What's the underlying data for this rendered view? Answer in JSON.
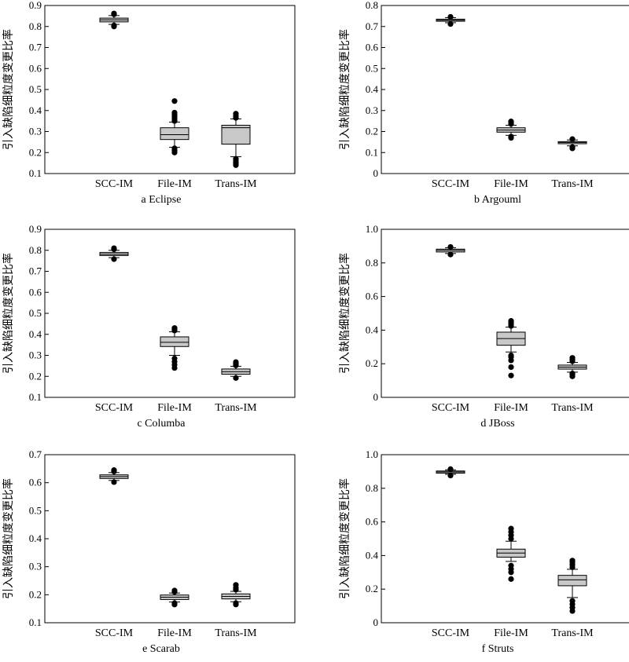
{
  "figure": {
    "ylabel": "引入缺陷细粒度变更比率",
    "box_fill": "#c8c8c8",
    "line_color": "#000000"
  },
  "chart_data": [
    {
      "type": "box",
      "caption": "a    Eclipse",
      "categories": [
        "SCC-IM",
        "File-IM",
        "Trans-IM"
      ],
      "ylabel": "引入缺陷细粒度变更比率",
      "ylim": [
        0.1,
        0.9
      ],
      "yticks": [
        "0.1",
        "0.2",
        "0.3",
        "0.4",
        "0.5",
        "0.6",
        "0.7",
        "0.8",
        "0.9"
      ],
      "ytick_values": [
        0.1,
        0.2,
        0.3,
        0.4,
        0.5,
        0.6,
        0.7,
        0.8,
        0.9
      ],
      "boxes": [
        {
          "q1": 0.822,
          "median": 0.832,
          "q3": 0.84,
          "whisker_low": 0.81,
          "whisker_high": 0.852,
          "outliers": [
            0.8,
            0.805,
            0.858,
            0.862
          ]
        },
        {
          "q1": 0.262,
          "median": 0.285,
          "q3": 0.318,
          "whisker_low": 0.225,
          "whisker_high": 0.345,
          "outliers": [
            0.2,
            0.21,
            0.22,
            0.35,
            0.36,
            0.37,
            0.38,
            0.39,
            0.445
          ]
        },
        {
          "q1": 0.24,
          "median": 0.318,
          "q3": 0.33,
          "whisker_low": 0.18,
          "whisker_high": 0.36,
          "outliers": [
            0.14,
            0.15,
            0.16,
            0.17,
            0.365,
            0.375,
            0.385
          ]
        }
      ]
    },
    {
      "type": "box",
      "caption": "b    Argouml",
      "categories": [
        "SCC-IM",
        "File-IM",
        "Trans-IM"
      ],
      "ylabel": "引入缺陷细粒度变更比率",
      "ylim": [
        0,
        0.8
      ],
      "yticks": [
        "0",
        "0.1",
        "0.2",
        "0.3",
        "0.4",
        "0.5",
        "0.6",
        "0.7",
        "0.8"
      ],
      "ytick_values": [
        0,
        0.1,
        0.2,
        0.3,
        0.4,
        0.5,
        0.6,
        0.7,
        0.8
      ],
      "boxes": [
        {
          "q1": 0.725,
          "median": 0.73,
          "q3": 0.735,
          "whisker_low": 0.718,
          "whisker_high": 0.742,
          "outliers": [
            0.712,
            0.746
          ]
        },
        {
          "q1": 0.197,
          "median": 0.207,
          "q3": 0.218,
          "whisker_low": 0.182,
          "whisker_high": 0.23,
          "outliers": [
            0.17,
            0.176,
            0.236,
            0.242,
            0.248
          ]
        },
        {
          "q1": 0.142,
          "median": 0.148,
          "q3": 0.152,
          "whisker_low": 0.132,
          "whisker_high": 0.16,
          "outliers": [
            0.12,
            0.126,
            0.164
          ]
        }
      ]
    },
    {
      "type": "box",
      "caption": "c    Columba",
      "categories": [
        "SCC-IM",
        "File-IM",
        "Trans-IM"
      ],
      "ylabel": "引入缺陷细粒度变更比率",
      "ylim": [
        0.1,
        0.9
      ],
      "yticks": [
        "0.1",
        "0.2",
        "0.3",
        "0.4",
        "0.5",
        "0.6",
        "0.7",
        "0.8",
        "0.9"
      ],
      "ytick_values": [
        0.1,
        0.2,
        0.3,
        0.4,
        0.5,
        0.6,
        0.7,
        0.8,
        0.9
      ],
      "boxes": [
        {
          "q1": 0.775,
          "median": 0.782,
          "q3": 0.79,
          "whisker_low": 0.765,
          "whisker_high": 0.8,
          "outliers": [
            0.758,
            0.805,
            0.81
          ]
        },
        {
          "q1": 0.342,
          "median": 0.362,
          "q3": 0.388,
          "whisker_low": 0.3,
          "whisker_high": 0.412,
          "outliers": [
            0.24,
            0.255,
            0.27,
            0.285,
            0.418,
            0.425,
            0.43
          ]
        },
        {
          "q1": 0.21,
          "median": 0.222,
          "q3": 0.235,
          "whisker_low": 0.2,
          "whisker_high": 0.248,
          "outliers": [
            0.192,
            0.252,
            0.26,
            0.268
          ]
        }
      ]
    },
    {
      "type": "box",
      "caption": "d    JBoss",
      "categories": [
        "SCC-IM",
        "File-IM",
        "Trans-IM"
      ],
      "ylabel": "引入缺陷细粒度变更比率",
      "ylim": [
        0,
        1.0
      ],
      "yticks": [
        "0",
        "0.2",
        "0.4",
        "0.6",
        "0.8",
        "1.0"
      ],
      "ytick_values": [
        0,
        0.2,
        0.4,
        0.6,
        0.8,
        1.0
      ],
      "boxes": [
        {
          "q1": 0.865,
          "median": 0.875,
          "q3": 0.882,
          "whisker_low": 0.856,
          "whisker_high": 0.89,
          "outliers": [
            0.85,
            0.895
          ]
        },
        {
          "q1": 0.31,
          "median": 0.35,
          "q3": 0.388,
          "whisker_low": 0.27,
          "whisker_high": 0.418,
          "outliers": [
            0.13,
            0.18,
            0.22,
            0.24,
            0.25,
            0.425,
            0.435,
            0.445,
            0.455
          ]
        },
        {
          "q1": 0.168,
          "median": 0.18,
          "q3": 0.192,
          "whisker_low": 0.15,
          "whisker_high": 0.208,
          "outliers": [
            0.125,
            0.135,
            0.142,
            0.215,
            0.225,
            0.235
          ]
        }
      ]
    },
    {
      "type": "box",
      "caption": "e    Scarab",
      "categories": [
        "SCC-IM",
        "File-IM",
        "Trans-IM"
      ],
      "ylabel": "引入缺陷细粒度变更比率",
      "ylim": [
        0.1,
        0.7
      ],
      "yticks": [
        "0.1",
        "0.2",
        "0.3",
        "0.4",
        "0.5",
        "0.6",
        "0.7"
      ],
      "ytick_values": [
        0.1,
        0.2,
        0.3,
        0.4,
        0.5,
        0.6,
        0.7
      ],
      "boxes": [
        {
          "q1": 0.615,
          "median": 0.622,
          "q3": 0.628,
          "whisker_low": 0.608,
          "whisker_high": 0.636,
          "outliers": [
            0.602,
            0.64,
            0.645
          ]
        },
        {
          "q1": 0.183,
          "median": 0.191,
          "q3": 0.199,
          "whisker_low": 0.174,
          "whisker_high": 0.206,
          "outliers": [
            0.165,
            0.17,
            0.21,
            0.215
          ]
        },
        {
          "q1": 0.185,
          "median": 0.194,
          "q3": 0.203,
          "whisker_low": 0.175,
          "whisker_high": 0.212,
          "outliers": [
            0.165,
            0.17,
            0.218,
            0.225,
            0.235
          ]
        }
      ]
    },
    {
      "type": "box",
      "caption": "f    Struts",
      "categories": [
        "SCC-IM",
        "File-IM",
        "Trans-IM"
      ],
      "ylabel": "引入缺陷细粒度变更比率",
      "ylim": [
        0,
        1.0
      ],
      "yticks": [
        "0",
        "0.2",
        "0.4",
        "0.6",
        "0.8",
        "1.0"
      ],
      "ytick_values": [
        0,
        0.2,
        0.4,
        0.6,
        0.8,
        1.0
      ],
      "boxes": [
        {
          "q1": 0.89,
          "median": 0.897,
          "q3": 0.903,
          "whisker_low": 0.883,
          "whisker_high": 0.91,
          "outliers": [
            0.876,
            0.914
          ]
        },
        {
          "q1": 0.39,
          "median": 0.415,
          "q3": 0.438,
          "whisker_low": 0.365,
          "whisker_high": 0.485,
          "outliers": [
            0.26,
            0.3,
            0.32,
            0.34,
            0.5,
            0.52,
            0.54,
            0.56
          ]
        },
        {
          "q1": 0.22,
          "median": 0.255,
          "q3": 0.282,
          "whisker_low": 0.15,
          "whisker_high": 0.318,
          "outliers": [
            0.07,
            0.09,
            0.11,
            0.13,
            0.33,
            0.345,
            0.36,
            0.37
          ]
        }
      ]
    }
  ]
}
